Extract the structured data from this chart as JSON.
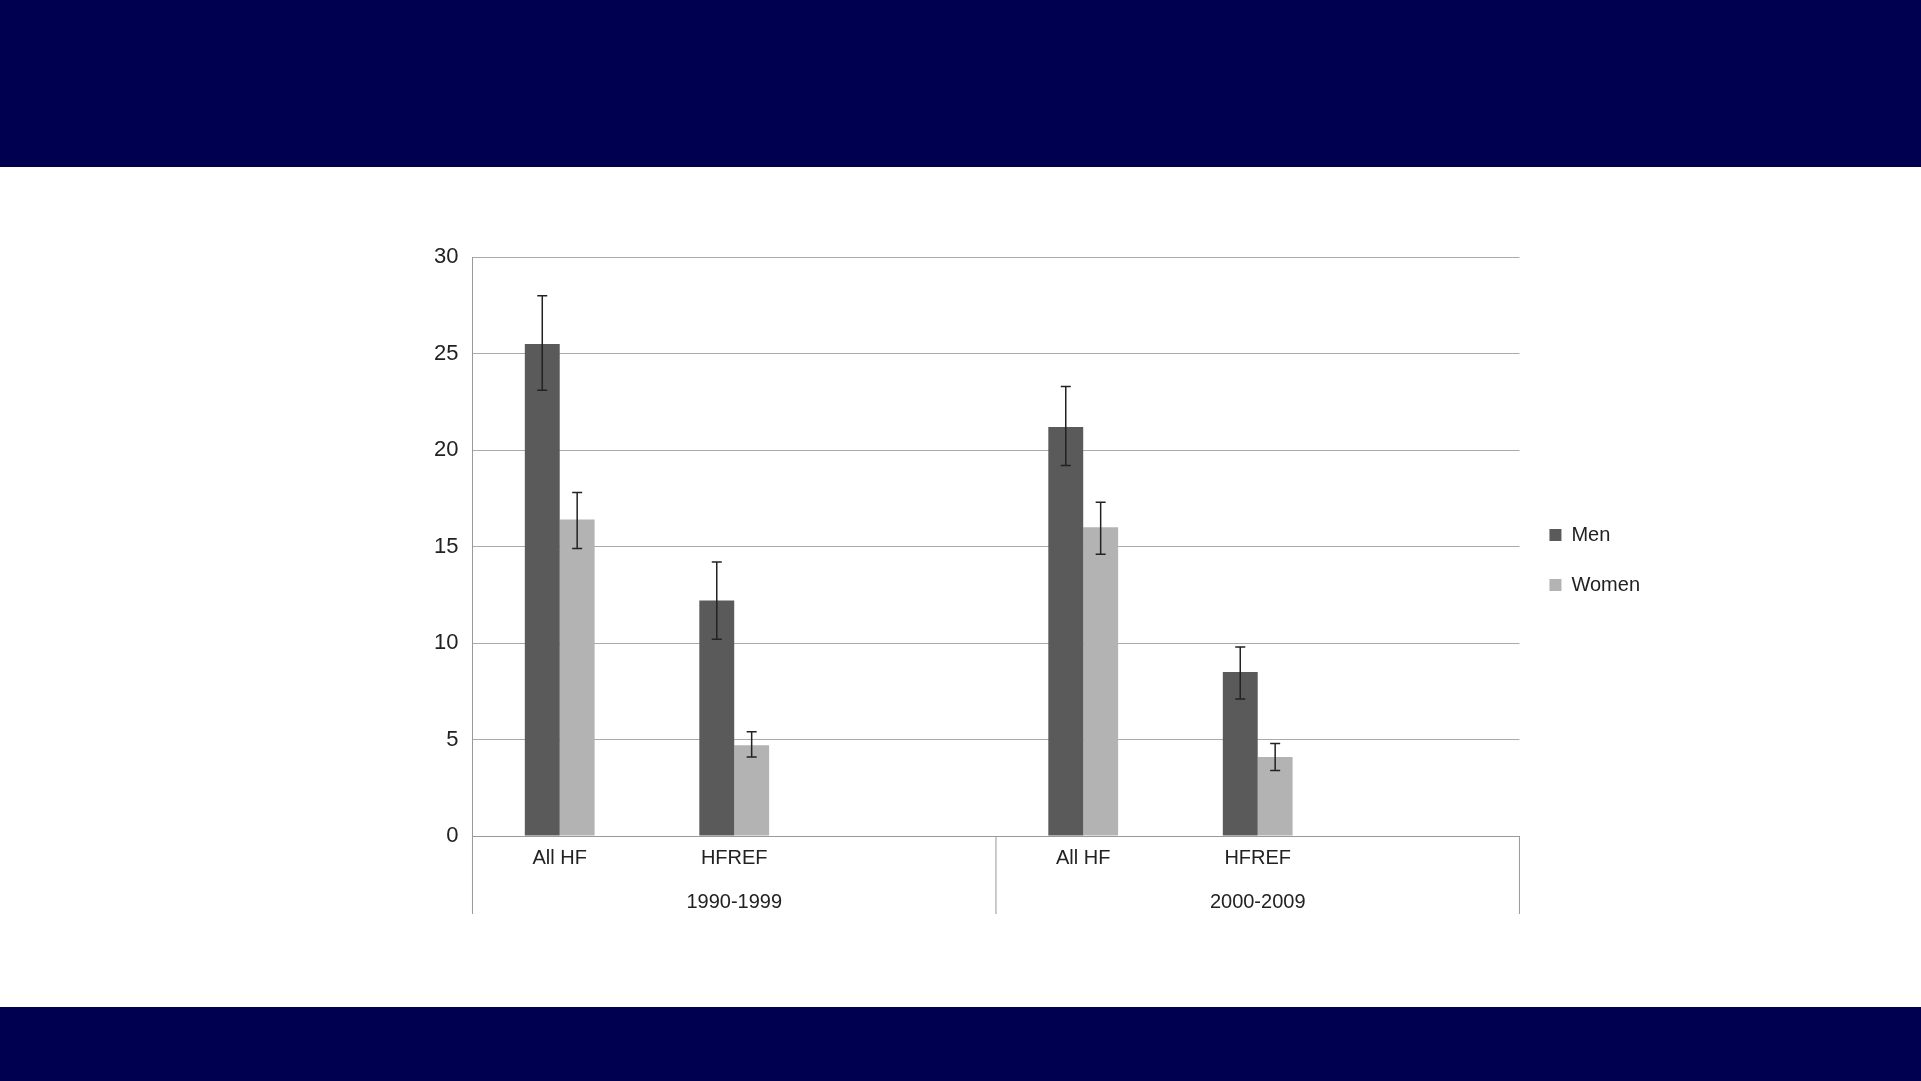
{
  "chart_data": {
    "type": "bar",
    "categories": [
      "All HF",
      "HFREF",
      null,
      "All HF",
      "HFREF",
      null
    ],
    "series": [
      {
        "name": "Men",
        "color": "#5a5a5a",
        "values": [
          25.5,
          12.2,
          null,
          21.2,
          8.5,
          null
        ],
        "errors": [
          [
            23.1,
            28.0
          ],
          [
            10.2,
            14.2
          ],
          null,
          [
            19.2,
            23.3
          ],
          [
            7.1,
            9.8
          ],
          null
        ]
      },
      {
        "name": "Women",
        "color": "#b3b3b3",
        "values": [
          16.4,
          4.7,
          null,
          16.0,
          4.1,
          null
        ],
        "errors": [
          [
            14.9,
            17.8
          ],
          [
            4.1,
            5.4
          ],
          null,
          [
            14.6,
            17.3
          ],
          [
            3.4,
            4.8
          ],
          null
        ]
      }
    ],
    "annotations": [
      "1990-1999",
      "2000-2009"
    ],
    "ylim": [
      0,
      30
    ],
    "yticks": [
      0,
      5,
      10,
      15,
      20,
      25,
      30
    ],
    "grid": "y",
    "legend": "right"
  }
}
